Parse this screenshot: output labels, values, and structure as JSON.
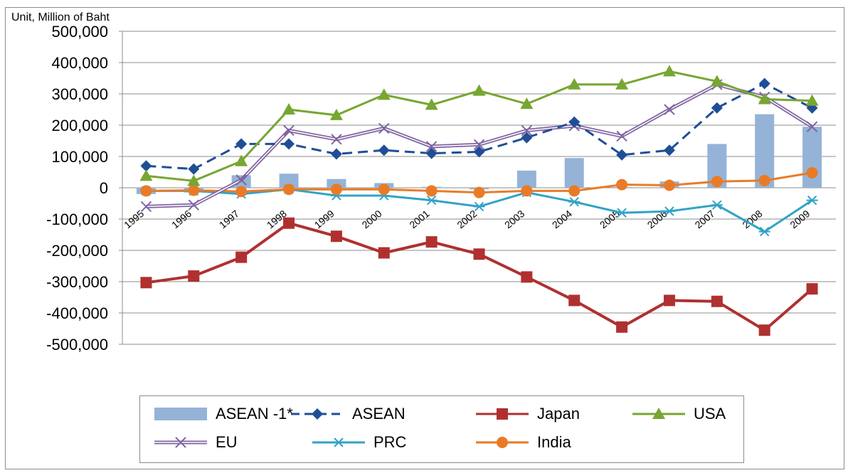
{
  "chart_data": {
    "type": "line",
    "unit_label": "Unit, Million of Baht",
    "categories": [
      "1995",
      "1996",
      "1997",
      "1998",
      "1999",
      "2000",
      "2001",
      "2002",
      "2003",
      "2004",
      "2005",
      "2006",
      "2007",
      "2008",
      "2009"
    ],
    "ylim": [
      -500000,
      500000
    ],
    "yticks": [
      500000,
      400000,
      300000,
      200000,
      100000,
      0,
      -100000,
      -200000,
      -300000,
      -400000,
      -500000
    ],
    "ytick_labels": [
      "500,000",
      "400,000",
      "300,000",
      "200,000",
      "100,000",
      "0",
      "-100,000",
      "-200,000",
      "-300,000",
      "-400,000",
      "-500,000"
    ],
    "grid": "horizontal",
    "legend_position": "bottom",
    "series": [
      {
        "name": "ASEAN -1*",
        "kind": "bar",
        "color": "#95b3d7",
        "values": [
          -20000,
          -15000,
          40000,
          45000,
          28000,
          15000,
          3000,
          -5000,
          55000,
          95000,
          2000,
          20000,
          140000,
          235000,
          195000
        ]
      },
      {
        "name": "ASEAN",
        "kind": "line",
        "marker": "diamond",
        "dash": true,
        "color": "#1f4e96",
        "values": [
          70000,
          60000,
          140000,
          140000,
          108000,
          120000,
          110000,
          115000,
          160000,
          210000,
          105000,
          120000,
          255000,
          333000,
          255000
        ]
      },
      {
        "name": "Japan",
        "kind": "line",
        "marker": "square",
        "color": "#b03030",
        "values": [
          -303000,
          -282000,
          -222000,
          -113000,
          -155000,
          -208000,
          -173000,
          -212000,
          -285000,
          -360000,
          -445000,
          -360000,
          -363000,
          -455000,
          -323000
        ]
      },
      {
        "name": "USA",
        "kind": "line",
        "marker": "triangle",
        "color": "#77a631",
        "values": [
          38000,
          22000,
          85000,
          250000,
          232000,
          297000,
          265000,
          310000,
          268000,
          330000,
          330000,
          372000,
          340000,
          283000,
          278000
        ]
      },
      {
        "name": "EU",
        "kind": "line",
        "marker": "x",
        "color": "#8064a2",
        "values": [
          -60000,
          -55000,
          25000,
          183000,
          155000,
          190000,
          132000,
          138000,
          183000,
          198000,
          165000,
          250000,
          330000,
          290000,
          195000
        ]
      },
      {
        "name": "PRC",
        "kind": "line",
        "marker": "star",
        "color": "#31a3c6",
        "values": [
          -10000,
          -10000,
          -20000,
          -5000,
          -25000,
          -25000,
          -40000,
          -60000,
          -15000,
          -45000,
          -80000,
          -75000,
          -55000,
          -140000,
          -40000
        ]
      },
      {
        "name": "India",
        "kind": "line",
        "marker": "circle",
        "color": "#e97b27",
        "values": [
          -10000,
          -8000,
          -12000,
          -5000,
          -5000,
          -5000,
          -10000,
          -15000,
          -10000,
          -10000,
          10000,
          8000,
          20000,
          23000,
          48000
        ]
      }
    ]
  }
}
